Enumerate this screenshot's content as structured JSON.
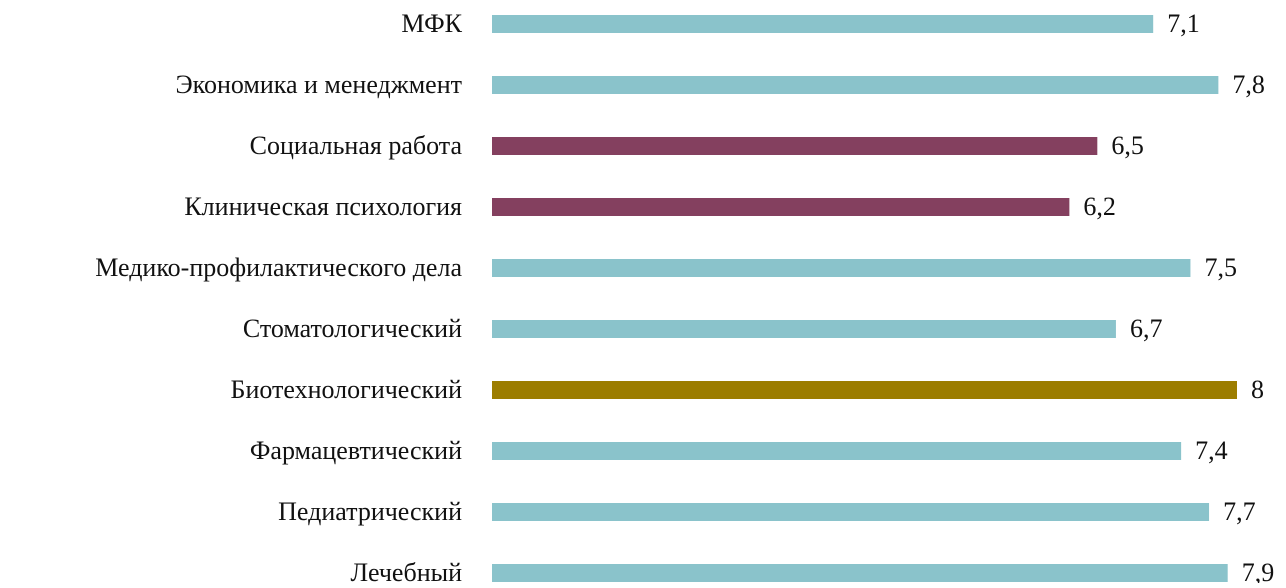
{
  "chart_data": {
    "type": "bar",
    "orientation": "horizontal",
    "categories": [
      "МФК",
      "Экономика и менеджмент",
      "Социальная работа",
      "Клиническая психология",
      "Медико-профилактического дела",
      "Стоматологический",
      "Биотехнологический",
      "Фармацевтический",
      "Педиатрический",
      "Лечебный"
    ],
    "values": [
      7.1,
      7.8,
      6.5,
      6.2,
      7.5,
      6.7,
      8,
      7.4,
      7.7,
      7.9
    ],
    "value_labels": [
      "7,1",
      "7,8",
      "6,5",
      "6,2",
      "7,5",
      "6,7",
      "8",
      "7,4",
      "7,7",
      "7,9"
    ],
    "colors": [
      "#8ac3cb",
      "#8ac3cb",
      "#84405f",
      "#84405f",
      "#8ac3cb",
      "#8ac3cb",
      "#9c7d00",
      "#8ac3cb",
      "#8ac3cb",
      "#8ac3cb"
    ]
  }
}
